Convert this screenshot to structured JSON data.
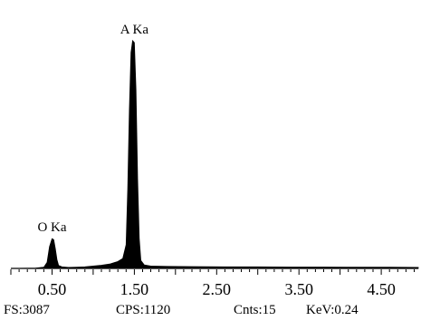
{
  "chart_data": {
    "type": "area",
    "title": "",
    "xlabel": "",
    "ylabel": "",
    "xlim": [
      0.0,
      4.95
    ],
    "ylim": [
      0,
      1300
    ],
    "x_tick_labels": [
      "0.50",
      "1.50",
      "2.50",
      "3.50",
      "4.50"
    ],
    "x_tick_values": [
      0.5,
      1.5,
      2.5,
      3.5,
      4.5
    ],
    "grid": false,
    "legend": "none",
    "colors": {
      "spectrum": "#000000",
      "background": "#ffffff"
    },
    "series": [
      {
        "x": [
          0.0,
          0.3,
          0.4,
          0.44,
          0.47,
          0.5,
          0.52,
          0.54,
          0.56,
          0.58,
          0.62,
          0.7,
          0.8,
          0.9,
          1.0,
          1.1,
          1.2,
          1.3,
          1.36,
          1.4,
          1.42,
          1.44,
          1.46,
          1.48,
          1.5,
          1.52,
          1.54,
          1.56,
          1.58,
          1.62,
          1.7,
          1.9,
          2.2,
          2.6,
          3.0,
          3.4,
          3.8,
          4.2,
          4.6,
          4.95
        ],
        "y": [
          0,
          2,
          6,
          30,
          110,
          150,
          145,
          100,
          45,
          15,
          8,
          5,
          6,
          8,
          12,
          16,
          22,
          35,
          50,
          120,
          400,
          800,
          1090,
          1150,
          1140,
          900,
          450,
          150,
          40,
          18,
          12,
          10,
          9,
          8,
          8,
          7,
          7,
          6,
          6,
          5
        ]
      }
    ],
    "annotations": [
      {
        "text": "O Ka",
        "x": 0.5,
        "y": 150
      },
      {
        "text": "A  Ka",
        "x": 1.5,
        "y": 1150
      }
    ]
  },
  "status": {
    "fs": "FS:3087",
    "cps": "CPS:1120",
    "cnts": "Cnts:15",
    "kev": "KeV:0.24"
  }
}
